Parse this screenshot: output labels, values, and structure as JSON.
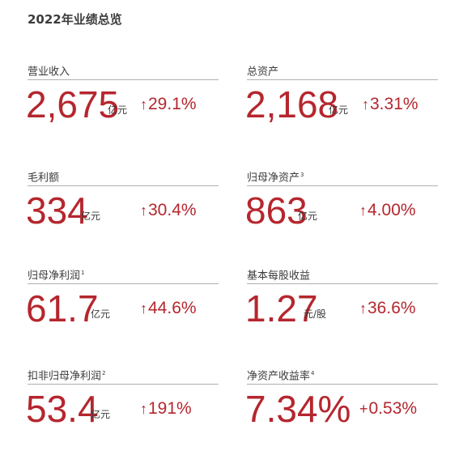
{
  "header": {
    "title": "2022年业绩总览"
  },
  "metrics": [
    {
      "label": "营业收入",
      "note": "",
      "value": "2,675",
      "unit": "亿元",
      "change_symbol": "↑",
      "change": "29.1%"
    },
    {
      "label": "总资产",
      "note": "",
      "value": "2,168",
      "unit": "亿元",
      "change_symbol": "↑",
      "change": "3.31%"
    },
    {
      "label": "毛利额",
      "note": "",
      "value": "334",
      "unit": "亿元",
      "change_symbol": "↑",
      "change": "30.4%"
    },
    {
      "label": "归母净资产",
      "note": "3",
      "value": "863",
      "unit": "亿元",
      "change_symbol": "↑",
      "change": "4.00%"
    },
    {
      "label": "归母净利润",
      "note": "1",
      "value": "61.7",
      "unit": "亿元",
      "change_symbol": "↑",
      "change": "44.6%"
    },
    {
      "label": "基本每股收益",
      "note": "",
      "value": "1.27",
      "unit": "元/股",
      "change_symbol": "↑",
      "change": "36.6%"
    },
    {
      "label": "扣非归母净利润",
      "note": "2",
      "value": "53.4",
      "unit": "亿元",
      "change_symbol": "↑",
      "change": "191%"
    },
    {
      "label": "净资产收益率",
      "note": "4",
      "value": "7.34%",
      "unit": "",
      "change_symbol": "+",
      "change": "0.53%"
    }
  ],
  "colors": {
    "accent": "#b5262e",
    "text": "#3a3a3a",
    "rule": "#b0b0b0"
  }
}
